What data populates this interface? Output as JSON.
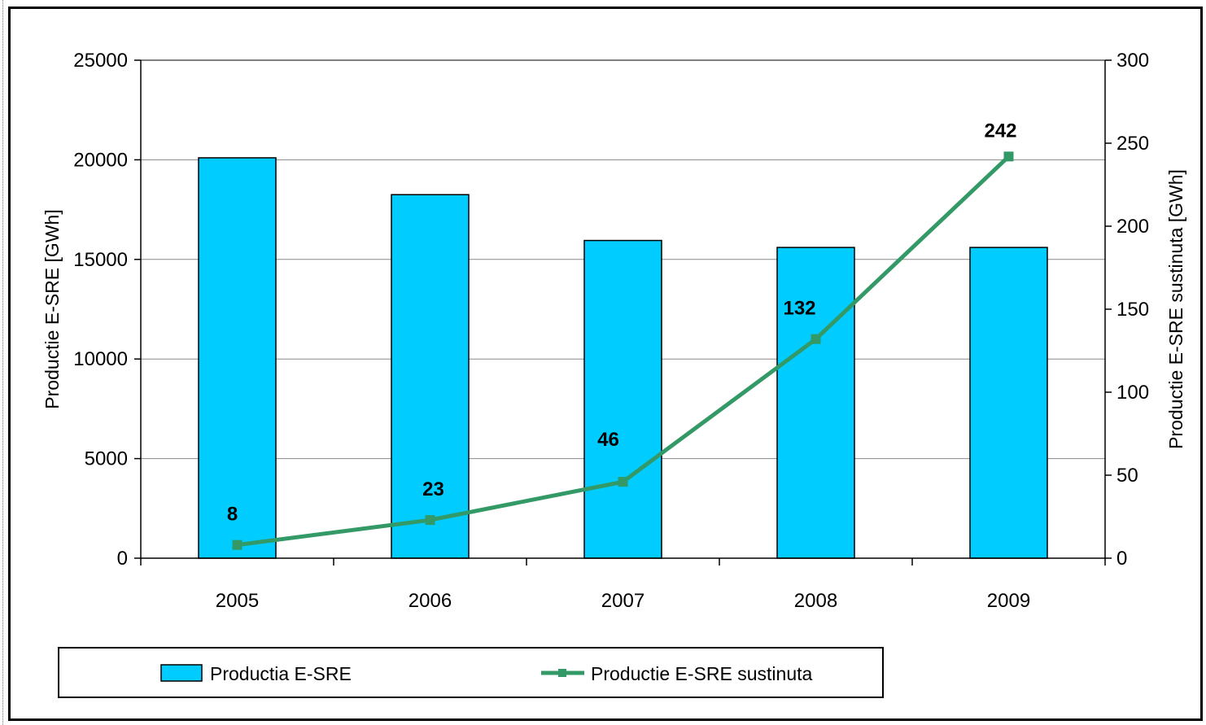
{
  "chart_data": {
    "type": "bar",
    "categories": [
      "2005",
      "2006",
      "2007",
      "2008",
      "2009"
    ],
    "series": [
      {
        "name": "Productia E-SRE",
        "type": "bar",
        "axis": "left",
        "values": [
          20100,
          18250,
          15950,
          15600,
          15600
        ],
        "color": "#00CCFF"
      },
      {
        "name": "Productie E-SRE sustinuta",
        "type": "line",
        "axis": "right",
        "values": [
          8,
          23,
          46,
          132,
          242
        ],
        "data_labels": [
          "8",
          "23",
          "46",
          "132",
          "242"
        ],
        "color": "#339966"
      }
    ],
    "ylabel_left": "Productie E-SRE [GWh]",
    "ylabel_right": "Productie E-SRE sustinuta [GWh]",
    "xlabel": "",
    "title": "",
    "ylim_left": [
      0,
      25000
    ],
    "yticks_left": [
      "0",
      "5000",
      "10000",
      "15000",
      "20000",
      "25000"
    ],
    "ylim_right": [
      0,
      300
    ],
    "yticks_right": [
      "0",
      "50",
      "100",
      "150",
      "200",
      "250",
      "300"
    ],
    "grid": true,
    "legend_position": "bottom-left"
  }
}
